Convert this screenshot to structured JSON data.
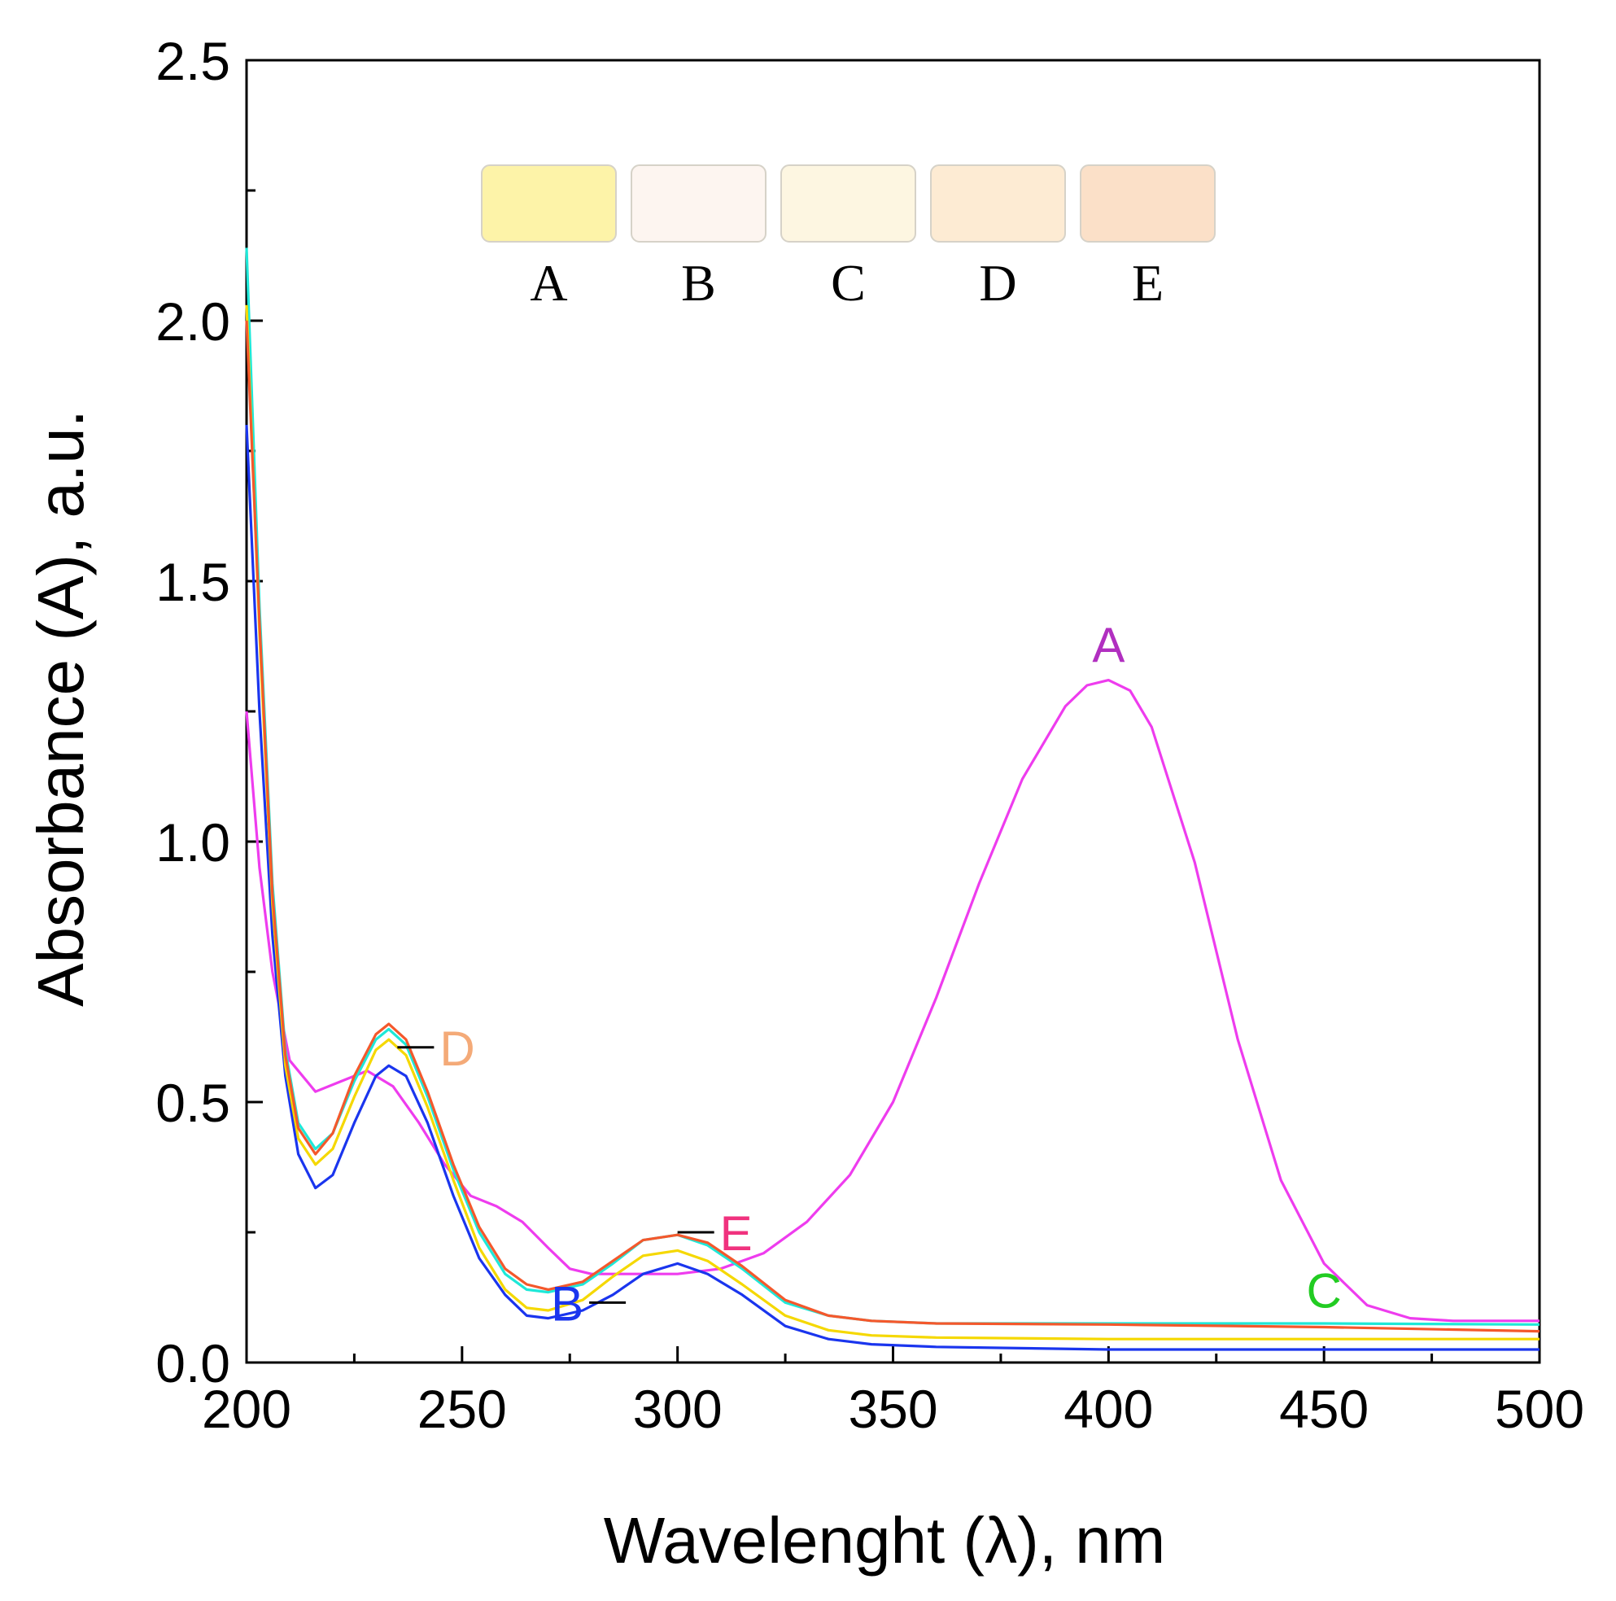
{
  "chart_data": {
    "type": "line",
    "title": "",
    "xlabel": "Wavelenght (λ), nm",
    "ylabel": "Absorbance (A), a.u.",
    "xlim": [
      200,
      500
    ],
    "ylim": [
      0.0,
      2.5
    ],
    "x_ticks": [
      200,
      250,
      300,
      350,
      400,
      450,
      500
    ],
    "x_tick_labels": [
      "200",
      "250",
      "300",
      "350",
      "400",
      "450",
      "500"
    ],
    "y_ticks": [
      0.0,
      0.5,
      1.0,
      1.5,
      2.0,
      2.5
    ],
    "y_tick_labels": [
      "0.0",
      "0.5",
      "1.0",
      "1.5",
      "2.0",
      "2.5"
    ],
    "grid": false,
    "vial_inset": [
      {
        "label": "A",
        "color": "#fdf3a8"
      },
      {
        "label": "B",
        "color": "#fdf5f0"
      },
      {
        "label": "C",
        "color": "#fdf6e1"
      },
      {
        "label": "D",
        "color": "#fdebd3"
      },
      {
        "label": "E",
        "color": "#fbe0c8"
      }
    ],
    "series": [
      {
        "name": "A",
        "color": "#ee3cee",
        "tag_color": "#b12fc0",
        "points": [
          [
            200,
            1.25
          ],
          [
            203,
            0.95
          ],
          [
            206,
            0.75
          ],
          [
            210,
            0.58
          ],
          [
            216,
            0.52
          ],
          [
            222,
            0.54
          ],
          [
            228,
            0.56
          ],
          [
            234,
            0.53
          ],
          [
            240,
            0.46
          ],
          [
            246,
            0.38
          ],
          [
            252,
            0.32
          ],
          [
            258,
            0.3
          ],
          [
            264,
            0.27
          ],
          [
            270,
            0.22
          ],
          [
            275,
            0.18
          ],
          [
            280,
            0.17
          ],
          [
            290,
            0.17
          ],
          [
            300,
            0.17
          ],
          [
            310,
            0.18
          ],
          [
            320,
            0.21
          ],
          [
            330,
            0.27
          ],
          [
            340,
            0.36
          ],
          [
            350,
            0.5
          ],
          [
            360,
            0.7
          ],
          [
            370,
            0.92
          ],
          [
            380,
            1.12
          ],
          [
            390,
            1.26
          ],
          [
            395,
            1.3
          ],
          [
            400,
            1.31
          ],
          [
            405,
            1.29
          ],
          [
            410,
            1.22
          ],
          [
            420,
            0.96
          ],
          [
            430,
            0.62
          ],
          [
            440,
            0.35
          ],
          [
            450,
            0.19
          ],
          [
            460,
            0.11
          ],
          [
            470,
            0.085
          ],
          [
            480,
            0.08
          ],
          [
            490,
            0.08
          ],
          [
            500,
            0.08
          ]
        ]
      },
      {
        "name": "B",
        "color": "#1a35ee",
        "tag_color": "#1a35ee",
        "points": [
          [
            200,
            1.8
          ],
          [
            203,
            1.25
          ],
          [
            206,
            0.82
          ],
          [
            209,
            0.55
          ],
          [
            212,
            0.4
          ],
          [
            216,
            0.335
          ],
          [
            220,
            0.36
          ],
          [
            225,
            0.46
          ],
          [
            230,
            0.55
          ],
          [
            233,
            0.57
          ],
          [
            237,
            0.55
          ],
          [
            242,
            0.46
          ],
          [
            248,
            0.32
          ],
          [
            254,
            0.2
          ],
          [
            260,
            0.13
          ],
          [
            265,
            0.09
          ],
          [
            270,
            0.085
          ],
          [
            278,
            0.1
          ],
          [
            285,
            0.13
          ],
          [
            292,
            0.17
          ],
          [
            300,
            0.19
          ],
          [
            307,
            0.17
          ],
          [
            315,
            0.13
          ],
          [
            325,
            0.07
          ],
          [
            335,
            0.045
          ],
          [
            345,
            0.035
          ],
          [
            360,
            0.03
          ],
          [
            400,
            0.025
          ],
          [
            450,
            0.025
          ],
          [
            500,
            0.025
          ]
        ]
      },
      {
        "name": "C",
        "color": "#1ee8d8",
        "tag_color": "#22cc22",
        "points": [
          [
            200,
            2.14
          ],
          [
            203,
            1.45
          ],
          [
            206,
            0.92
          ],
          [
            209,
            0.6
          ],
          [
            212,
            0.46
          ],
          [
            216,
            0.41
          ],
          [
            220,
            0.44
          ],
          [
            225,
            0.54
          ],
          [
            230,
            0.62
          ],
          [
            233,
            0.64
          ],
          [
            237,
            0.61
          ],
          [
            242,
            0.51
          ],
          [
            248,
            0.37
          ],
          [
            254,
            0.25
          ],
          [
            260,
            0.17
          ],
          [
            265,
            0.14
          ],
          [
            270,
            0.135
          ],
          [
            278,
            0.15
          ],
          [
            285,
            0.19
          ],
          [
            292,
            0.235
          ],
          [
            300,
            0.245
          ],
          [
            307,
            0.225
          ],
          [
            315,
            0.18
          ],
          [
            325,
            0.115
          ],
          [
            335,
            0.09
          ],
          [
            345,
            0.08
          ],
          [
            360,
            0.075
          ],
          [
            400,
            0.075
          ],
          [
            450,
            0.075
          ],
          [
            500,
            0.073
          ]
        ]
      },
      {
        "name": "D",
        "color": "#f5d800",
        "tag_color": "#f4aa78",
        "points": [
          [
            200,
            2.03
          ],
          [
            203,
            1.4
          ],
          [
            206,
            0.88
          ],
          [
            209,
            0.57
          ],
          [
            212,
            0.43
          ],
          [
            216,
            0.38
          ],
          [
            220,
            0.41
          ],
          [
            225,
            0.51
          ],
          [
            230,
            0.6
          ],
          [
            233,
            0.62
          ],
          [
            237,
            0.59
          ],
          [
            242,
            0.49
          ],
          [
            248,
            0.35
          ],
          [
            254,
            0.22
          ],
          [
            260,
            0.14
          ],
          [
            265,
            0.105
          ],
          [
            270,
            0.1
          ],
          [
            278,
            0.12
          ],
          [
            285,
            0.165
          ],
          [
            292,
            0.205
          ],
          [
            300,
            0.215
          ],
          [
            307,
            0.195
          ],
          [
            315,
            0.15
          ],
          [
            325,
            0.09
          ],
          [
            335,
            0.062
          ],
          [
            345,
            0.052
          ],
          [
            360,
            0.048
          ],
          [
            400,
            0.045
          ],
          [
            450,
            0.045
          ],
          [
            500,
            0.045
          ]
        ]
      },
      {
        "name": "E",
        "color": "#f4582c",
        "tag_color": "#f0327e",
        "points": [
          [
            200,
            2.0
          ],
          [
            203,
            1.42
          ],
          [
            206,
            0.9
          ],
          [
            209,
            0.59
          ],
          [
            212,
            0.45
          ],
          [
            216,
            0.4
          ],
          [
            220,
            0.44
          ],
          [
            225,
            0.55
          ],
          [
            230,
            0.63
          ],
          [
            233,
            0.65
          ],
          [
            237,
            0.62
          ],
          [
            242,
            0.52
          ],
          [
            248,
            0.38
          ],
          [
            254,
            0.26
          ],
          [
            260,
            0.18
          ],
          [
            265,
            0.15
          ],
          [
            270,
            0.14
          ],
          [
            278,
            0.155
          ],
          [
            285,
            0.195
          ],
          [
            292,
            0.235
          ],
          [
            300,
            0.245
          ],
          [
            307,
            0.23
          ],
          [
            315,
            0.185
          ],
          [
            325,
            0.12
          ],
          [
            335,
            0.09
          ],
          [
            345,
            0.08
          ],
          [
            360,
            0.075
          ],
          [
            400,
            0.073
          ],
          [
            450,
            0.068
          ],
          [
            500,
            0.06
          ]
        ]
      }
    ],
    "series_annotations": [
      {
        "label": "A",
        "at": [
          400,
          1.38
        ],
        "leader": false
      },
      {
        "label": "D",
        "at": [
          240,
          0.6
        ],
        "leader": true,
        "leader_from": [
          235,
          0.605
        ]
      },
      {
        "label": "E",
        "at": [
          317,
          0.26
        ],
        "leader": true,
        "leader_from": [
          300,
          0.25
        ]
      },
      {
        "label": "B",
        "at": [
          281,
          0.13
        ],
        "leader": true,
        "leader_from": [
          288,
          0.115
        ]
      },
      {
        "label": "C",
        "at": [
          450,
          0.14
        ],
        "leader": false
      }
    ]
  }
}
